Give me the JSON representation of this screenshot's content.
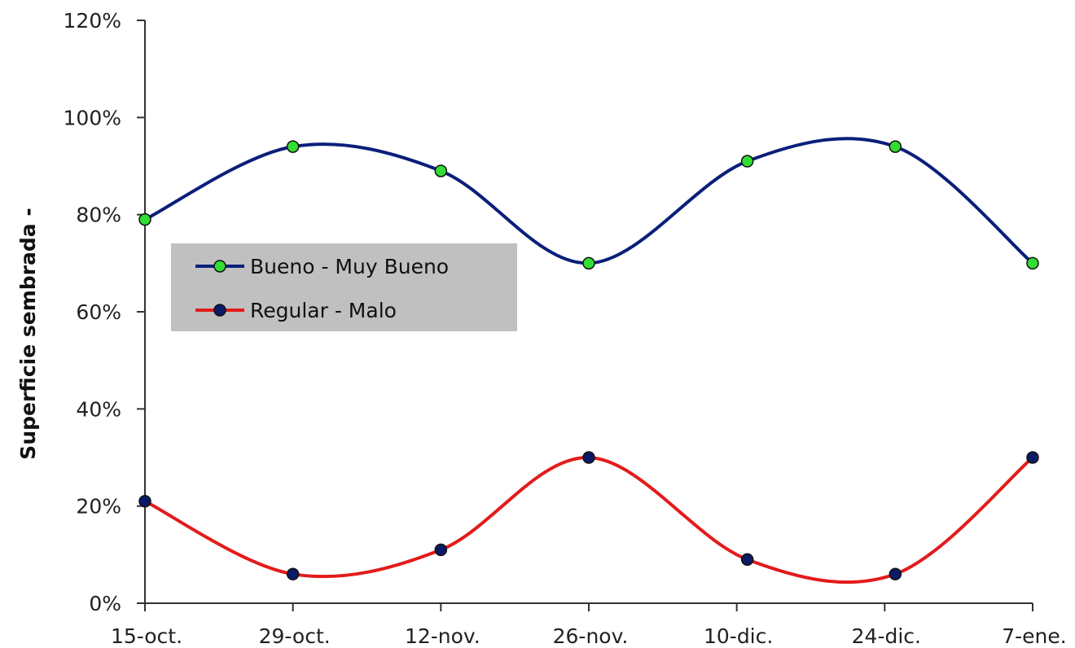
{
  "chart_data": {
    "type": "line",
    "ylabel": "Superficie sembrada -",
    "xlabel": "",
    "title": "",
    "categories": [
      "15-oct.",
      "29-oct.",
      "12-nov.",
      "26-nov.",
      "10-dic.",
      "24-dic.",
      "7-ene."
    ],
    "x": [
      "2023-10-15",
      "2023-10-29",
      "2023-11-12",
      "2023-11-26",
      "2023-12-10",
      "2023-12-24",
      "2024-01-07"
    ],
    "x_points": [
      "2023-10-15",
      "2023-10-29",
      "2023-11-12",
      "2023-11-26",
      "2023-12-11",
      "2023-12-25",
      "2024-01-07"
    ],
    "ylim": [
      0,
      120
    ],
    "yticks": [
      "0%",
      "20%",
      "40%",
      "60%",
      "80%",
      "100%",
      "120%"
    ],
    "ytick_values": [
      0,
      20,
      40,
      60,
      80,
      100,
      120
    ],
    "grid": false,
    "legend_position": "left, upper-middle",
    "series": [
      {
        "name": "Bueno - Muy Bueno",
        "values": [
          79,
          94,
          89,
          70,
          91,
          94,
          70
        ],
        "line_color": "#0a1f7a",
        "marker_color": "#33dd33"
      },
      {
        "name": "Regular - Malo",
        "values": [
          21,
          6,
          11,
          30,
          9,
          6,
          30
        ],
        "line_color": "#e31b1b",
        "marker_color": "#0a1a66"
      }
    ]
  }
}
